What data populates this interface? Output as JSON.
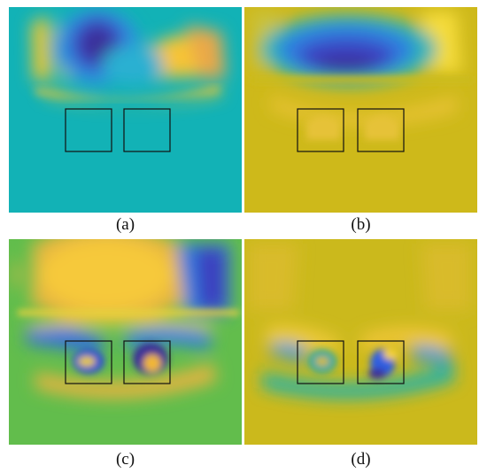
{
  "panels": [
    {
      "id": "a",
      "caption": "(a)"
    },
    {
      "id": "b",
      "caption": "(b)"
    },
    {
      "id": "c",
      "caption": "(c)"
    },
    {
      "id": "d",
      "caption": "(d)"
    }
  ],
  "colors": {
    "a_background": "#12b2b6",
    "b_background": "#ceb91a",
    "c_background": "#62bd4c",
    "d_background": "#cbb91c",
    "dark_blue": "#3a2d9a",
    "blue": "#2f6fe0",
    "cyan": "#1fb4b2",
    "green": "#3fb866",
    "yellow": "#f5cf2c",
    "orange_yellow": "#f8b73e",
    "box_stroke": "#111111"
  }
}
